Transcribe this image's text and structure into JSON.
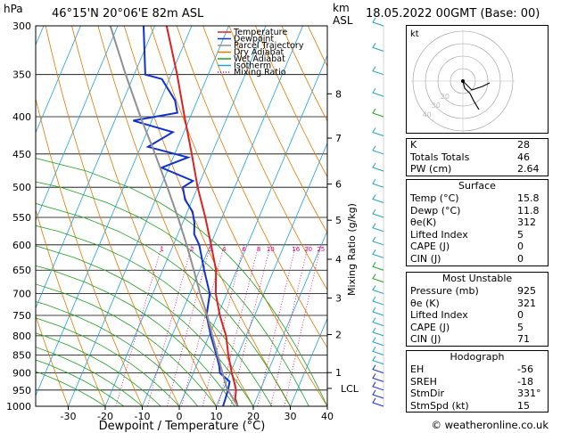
{
  "header": {
    "hpa_label": "hPa",
    "location": "46°15'N  20°06'E  82m  ASL",
    "km_label": "km",
    "asl_label": "ASL",
    "datetime": "18.05.2022  00GMT  (Base: 00)"
  },
  "chart_data": {
    "type": "line",
    "subtype": "skew-T log-P",
    "xlabel": "Dewpoint / Temperature (°C)",
    "ylabel_right": "Mixing Ratio (g/kg)",
    "x_ticks": [
      -30,
      -20,
      -10,
      0,
      10,
      20,
      30,
      40
    ],
    "pressure_levels": [
      300,
      350,
      400,
      450,
      500,
      550,
      600,
      650,
      700,
      750,
      800,
      850,
      900,
      950,
      1000
    ],
    "km_ticks": [
      {
        "p": 372,
        "label": "8"
      },
      {
        "p": 428,
        "label": "7"
      },
      {
        "p": 495,
        "label": "6"
      },
      {
        "p": 555,
        "label": "5"
      },
      {
        "p": 628,
        "label": "4"
      },
      {
        "p": 710,
        "label": "3"
      },
      {
        "p": 797,
        "label": "2"
      },
      {
        "p": 899,
        "label": "1"
      },
      {
        "p": 945,
        "label": "LCL"
      }
    ],
    "mixing_ratios": [
      "1",
      "2",
      "3",
      "4",
      "6",
      "8",
      "10",
      "16",
      "20",
      "25"
    ],
    "legend": [
      {
        "name": "Temperature",
        "color": "#e02020"
      },
      {
        "name": "Dewpoint",
        "color": "#1030d0"
      },
      {
        "name": "Parcel Trajectory",
        "color": "#909090"
      },
      {
        "name": "Dry Adiabat",
        "color": "#e07800"
      },
      {
        "name": "Wet Adiabat",
        "color": "#20a020"
      },
      {
        "name": "Isotherm",
        "color": "#20a0e0"
      },
      {
        "name": "Mixing Ratio",
        "color": "#e0007a"
      }
    ],
    "series": [
      {
        "name": "Temperature",
        "color": "#e02020",
        "points": [
          [
            1000,
            15.8
          ],
          [
            975,
            14.2
          ],
          [
            950,
            13.5
          ],
          [
            925,
            12.0
          ],
          [
            900,
            10.4
          ],
          [
            850,
            7.4
          ],
          [
            800,
            4.6
          ],
          [
            750,
            0.6
          ],
          [
            700,
            -3.0
          ],
          [
            650,
            -5.6
          ],
          [
            600,
            -9.8
          ],
          [
            550,
            -14.5
          ],
          [
            500,
            -20.0
          ],
          [
            450,
            -25.4
          ],
          [
            400,
            -31.6
          ],
          [
            350,
            -38.4
          ],
          [
            300,
            -46.8
          ]
        ]
      },
      {
        "name": "Dewpoint",
        "color": "#1030d0",
        "points": [
          [
            1000,
            11.8
          ],
          [
            975,
            11.6
          ],
          [
            950,
            11.3
          ],
          [
            925,
            10.8
          ],
          [
            900,
            7.2
          ],
          [
            880,
            6.2
          ],
          [
            850,
            4.2
          ],
          [
            800,
            0.5
          ],
          [
            750,
            -3.0
          ],
          [
            700,
            -4.6
          ],
          [
            650,
            -8.8
          ],
          [
            600,
            -13.0
          ],
          [
            580,
            -15.6
          ],
          [
            560,
            -16.8
          ],
          [
            540,
            -18.6
          ],
          [
            520,
            -22.0
          ],
          [
            500,
            -24.0
          ],
          [
            490,
            -22.0
          ],
          [
            470,
            -32.0
          ],
          [
            455,
            -26.0
          ],
          [
            440,
            -38.0
          ],
          [
            420,
            -33.0
          ],
          [
            405,
            -45.0
          ],
          [
            395,
            -34.0
          ],
          [
            380,
            -36.0
          ],
          [
            355,
            -42.0
          ],
          [
            350,
            -47.0
          ],
          [
            300,
            -53.0
          ]
        ]
      },
      {
        "name": "Parcel Trajectory",
        "color": "#909090",
        "points": [
          [
            1000,
            15.8
          ],
          [
            945,
            10.8
          ],
          [
            900,
            7.9
          ],
          [
            850,
            4.5
          ],
          [
            800,
            0.9
          ],
          [
            750,
            -2.8
          ],
          [
            700,
            -7.2
          ],
          [
            650,
            -11.6
          ],
          [
            600,
            -16.4
          ],
          [
            550,
            -21.9
          ],
          [
            500,
            -28.2
          ],
          [
            450,
            -35.3
          ],
          [
            400,
            -43.5
          ],
          [
            350,
            -52.3
          ],
          [
            300,
            -62.0
          ]
        ]
      }
    ]
  },
  "wind_barbs_color": "#20a0c0",
  "hodograph": {
    "label": "kt",
    "rings": [
      "10",
      "20",
      "30",
      "40"
    ]
  },
  "indices": {
    "rows": [
      {
        "label": "K",
        "value": "28"
      },
      {
        "label": "Totals Totals",
        "value": "46"
      },
      {
        "label": "PW (cm)",
        "value": "2.64"
      }
    ]
  },
  "surface": {
    "title": "Surface",
    "rows": [
      {
        "label": "Temp (°C)",
        "value": "15.8"
      },
      {
        "label": "Dewp (°C)",
        "value": "11.8"
      },
      {
        "label": "θe(K)",
        "value": "312"
      },
      {
        "label": "Lifted Index",
        "value": "5"
      },
      {
        "label": "CAPE (J)",
        "value": "0"
      },
      {
        "label": "CIN (J)",
        "value": "0"
      }
    ]
  },
  "most_unstable": {
    "title": "Most Unstable",
    "rows": [
      {
        "label": "Pressure (mb)",
        "value": "925"
      },
      {
        "label": "θe (K)",
        "value": "321"
      },
      {
        "label": "Lifted Index",
        "value": "0"
      },
      {
        "label": "CAPE (J)",
        "value": "5"
      },
      {
        "label": "CIN (J)",
        "value": "71"
      }
    ]
  },
  "hodograph_table": {
    "title": "Hodograph",
    "rows": [
      {
        "label": "EH",
        "value": "-56"
      },
      {
        "label": "SREH",
        "value": "-18"
      },
      {
        "label": "StmDir",
        "value": "331°"
      },
      {
        "label": "StmSpd (kt)",
        "value": "15"
      }
    ]
  },
  "footer": "© weatheronline.co.uk"
}
